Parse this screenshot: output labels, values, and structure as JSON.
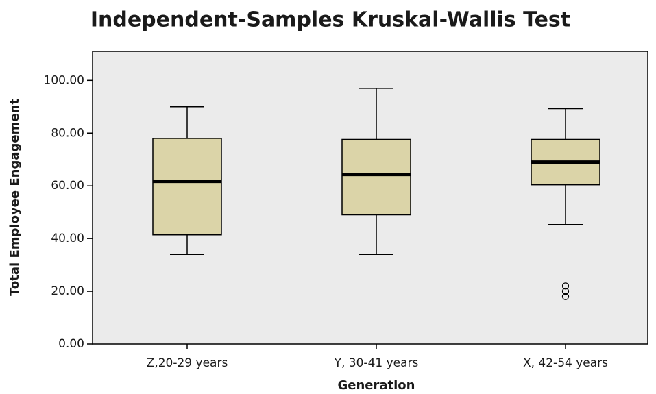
{
  "chart_data": {
    "type": "box",
    "title": "Independent-Samples Kruskal-Wallis Test",
    "x_label": "Generation",
    "y_label": "Total Employee Engagement",
    "categories": [
      "Z,20-29 years",
      "Y, 30-41 years",
      "X, 42-54 years"
    ],
    "boxes": [
      {
        "min": 34,
        "q1": 41.4,
        "median": 61.7,
        "q3": 78,
        "max": 90,
        "outliers": []
      },
      {
        "min": 34,
        "q1": 49,
        "median": 64.3,
        "q3": 77.6,
        "max": 97,
        "outliers": []
      },
      {
        "min": 45.3,
        "q1": 60.4,
        "median": 69,
        "q3": 77.6,
        "max": 89.3,
        "outliers": [
          22,
          20,
          18
        ]
      }
    ],
    "color": "#dbd4a8",
    "ylim": [
      0,
      111
    ],
    "yticks": [
      {
        "value": 0,
        "label": "0.00"
      },
      {
        "value": 20,
        "label": "20.00"
      },
      {
        "value": 40,
        "label": "40.00"
      },
      {
        "value": 60,
        "label": "60.00"
      },
      {
        "value": 80,
        "label": "80.00"
      },
      {
        "value": 100,
        "label": "100.00"
      }
    ]
  }
}
